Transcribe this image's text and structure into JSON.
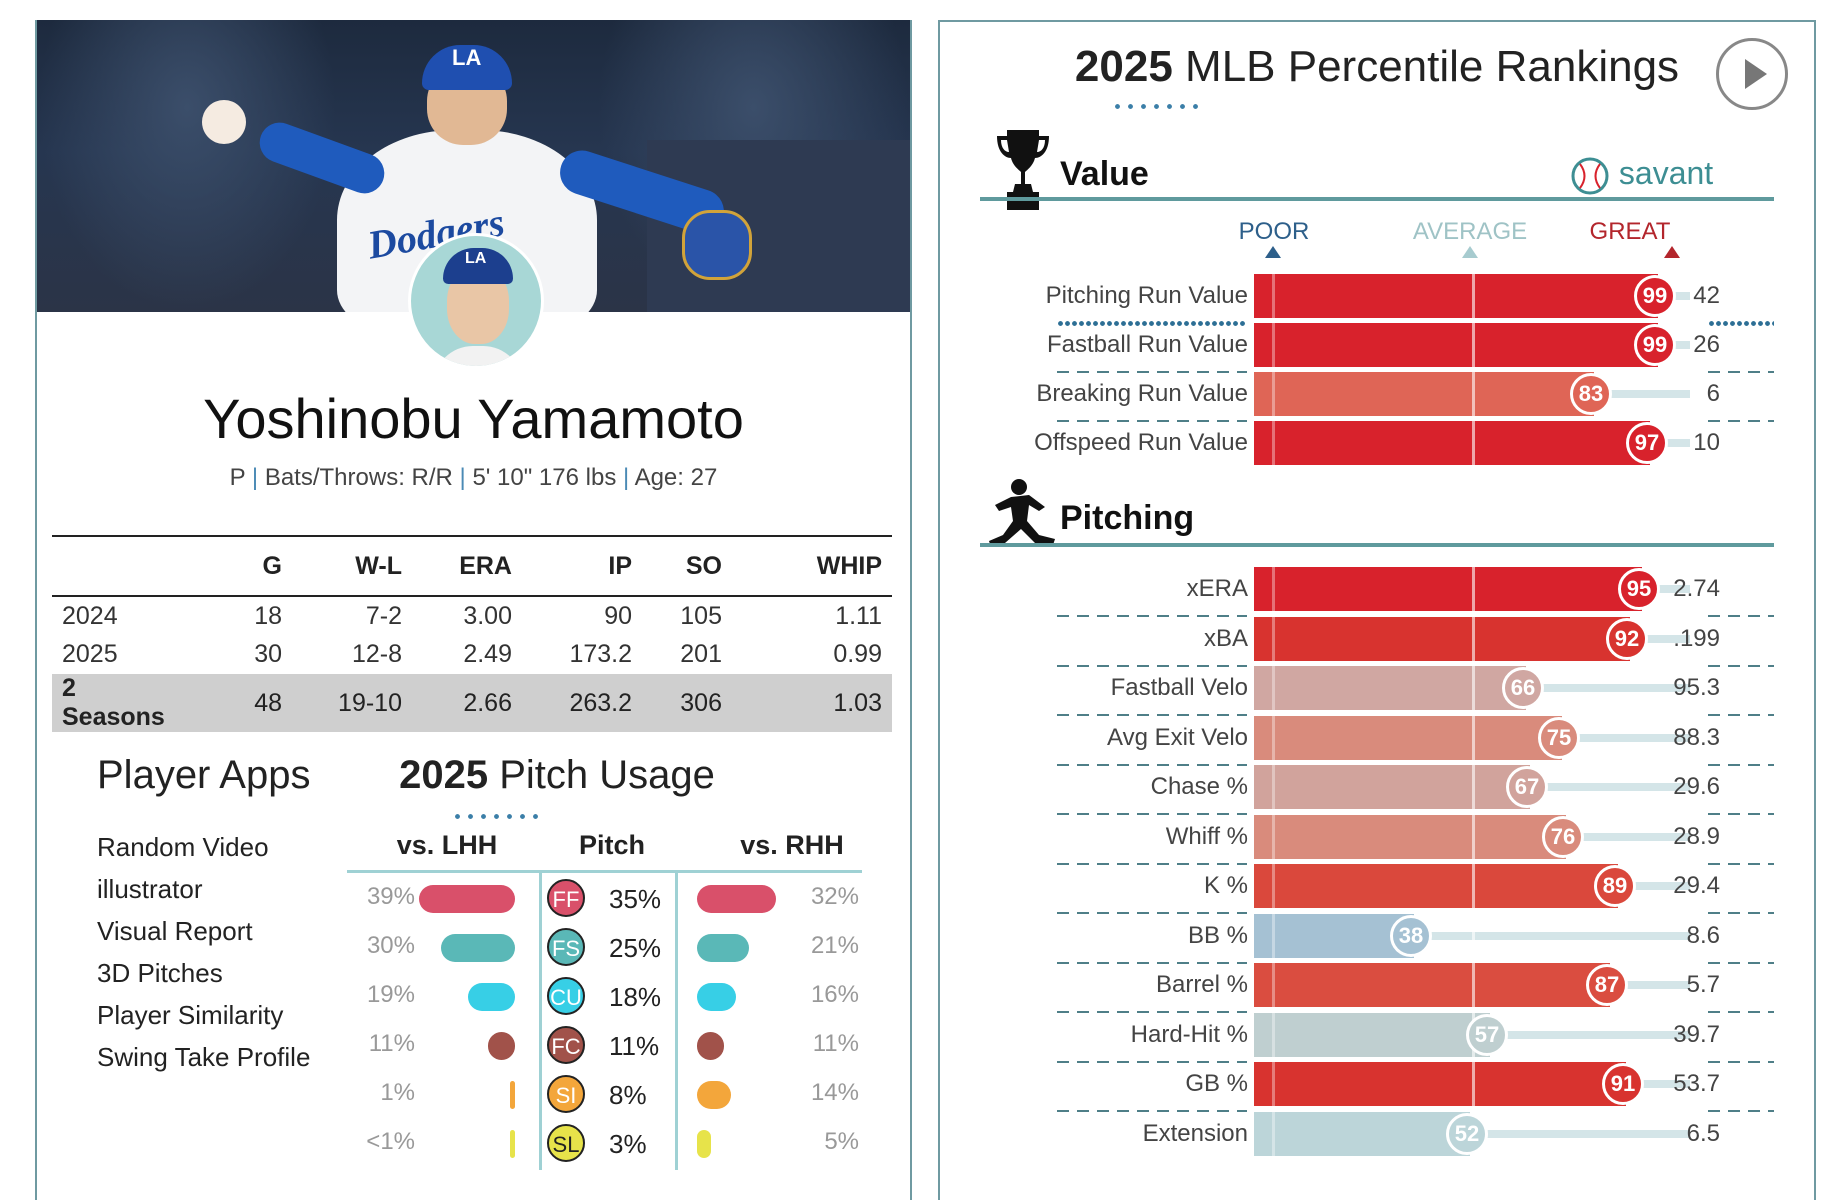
{
  "player": {
    "name": "Yoshinobu Yamamoto",
    "position": "P",
    "bats_throws": "Bats/Throws: R/R",
    "size": "5' 10\" 176 lbs",
    "age": "Age: 27",
    "jersey_text": "Dodgers",
    "cap_logo": "LA"
  },
  "stats": {
    "headers": [
      "",
      "G",
      "W-L",
      "ERA",
      "IP",
      "SO",
      "WHIP"
    ],
    "rows": [
      [
        "2024",
        "18",
        "7-2",
        "3.00",
        "90",
        "105",
        "1.11"
      ],
      [
        "2025",
        "30",
        "12-8",
        "2.49",
        "173.2",
        "201",
        "0.99"
      ],
      [
        "2 Seasons",
        "48",
        "19-10",
        "2.66",
        "263.2",
        "306",
        "1.03"
      ]
    ]
  },
  "apps": {
    "title": "Player Apps",
    "items": [
      "Random Video",
      "illustrator",
      "Visual Report",
      "3D Pitches",
      "Player Similarity",
      "Swing Take Profile"
    ]
  },
  "pitch_usage": {
    "title_year": "2025",
    "title_rest": "Pitch Usage",
    "col_lhh": "vs. LHH",
    "col_pitch": "Pitch",
    "col_rhh": "vs. RHH",
    "pitches": [
      {
        "code": "FF",
        "pct": "35%",
        "lhh": "39%",
        "rhh": "32%",
        "lhh_v": 39,
        "rhh_v": 32,
        "color": "#d9506a"
      },
      {
        "code": "FS",
        "pct": "25%",
        "lhh": "30%",
        "rhh": "21%",
        "lhh_v": 30,
        "rhh_v": 21,
        "color": "#5ab8b7"
      },
      {
        "code": "CU",
        "pct": "18%",
        "lhh": "19%",
        "rhh": "16%",
        "lhh_v": 19,
        "rhh_v": 16,
        "color": "#37cfe6"
      },
      {
        "code": "FC",
        "pct": "11%",
        "lhh": "11%",
        "rhh": "11%",
        "lhh_v": 11,
        "rhh_v": 11,
        "color": "#a1524a"
      },
      {
        "code": "SI",
        "pct": "8%",
        "lhh": "1%",
        "rhh": "14%",
        "lhh_v": 1,
        "rhh_v": 14,
        "color": "#f3a63b"
      },
      {
        "code": "SL",
        "pct": "3%",
        "lhh": "<1%",
        "rhh": "5%",
        "lhh_v": 0.4,
        "rhh_v": 5,
        "color": "#e7e34a"
      }
    ]
  },
  "rankings": {
    "title_year": "2025",
    "title_rest": "MLB Percentile Rankings",
    "brand": "savant",
    "scale": {
      "poor": "POOR",
      "average": "AVERAGE",
      "great": "GREAT"
    },
    "sections": [
      {
        "title": "Value",
        "metrics": [
          {
            "label": "Pitching Run Value",
            "pct": 99,
            "value": "42",
            "color": "#d8222c",
            "highlight": true
          },
          {
            "label": "Fastball Run Value",
            "pct": 99,
            "value": "26",
            "color": "#d8222c"
          },
          {
            "label": "Breaking Run Value",
            "pct": 83,
            "value": "6",
            "color": "#df6556"
          },
          {
            "label": "Offspeed Run Value",
            "pct": 97,
            "value": "10",
            "color": "#d8222c"
          }
        ]
      },
      {
        "title": "Pitching",
        "metrics": [
          {
            "label": "xERA",
            "pct": 95,
            "value": "2.74",
            "color": "#d8222c"
          },
          {
            "label": "xBA",
            "pct": 92,
            "value": ".199",
            "color": "#d8332f"
          },
          {
            "label": "Fastball Velo",
            "pct": 66,
            "value": "95.3",
            "color": "#d0a7a2"
          },
          {
            "label": "Avg Exit Velo",
            "pct": 75,
            "value": "88.3",
            "color": "#d98b7c"
          },
          {
            "label": "Chase %",
            "pct": 67,
            "value": "29.6",
            "color": "#d1a39c"
          },
          {
            "label": "Whiff %",
            "pct": 76,
            "value": "28.9",
            "color": "#d98b7c"
          },
          {
            "label": "K %",
            "pct": 89,
            "value": "29.4",
            "color": "#da483c"
          },
          {
            "label": "BB %",
            "pct": 38,
            "value": "8.6",
            "color": "#a5c1d3"
          },
          {
            "label": "Barrel %",
            "pct": 87,
            "value": "5.7",
            "color": "#da4d40"
          },
          {
            "label": "Hard-Hit %",
            "pct": 57,
            "value": "39.7",
            "color": "#bfcfd0"
          },
          {
            "label": "GB %",
            "pct": 91,
            "value": "53.7",
            "color": "#d8332f"
          },
          {
            "label": "Extension",
            "pct": 52,
            "value": "6.5",
            "color": "#bcd5d9"
          }
        ]
      }
    ]
  }
}
